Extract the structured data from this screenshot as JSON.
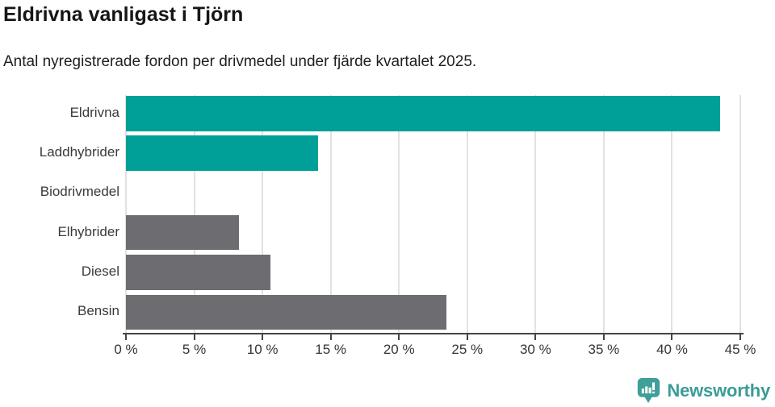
{
  "header": {
    "title": "Eldrivna vanligast i Tjörn",
    "subtitle": "Antal nyregistrerade fordon per drivmedel under fjärde kvartalet 2025."
  },
  "chart_data": {
    "type": "bar",
    "orientation": "horizontal",
    "title": "Eldrivna vanligast i Tjörn",
    "subtitle": "Antal nyregistrerade fordon per drivmedel under fjärde kvartalet 2025.",
    "categories": [
      "Eldrivna",
      "Laddhybrider",
      "Biodrivmedel",
      "Elhybrider",
      "Diesel",
      "Bensin"
    ],
    "values": [
      43.5,
      14.1,
      0,
      8.3,
      10.6,
      23.5
    ],
    "unit": "%",
    "bar_colors": [
      "#00a099",
      "#00a099",
      "#00a099",
      "#6c6c71",
      "#6c6c71",
      "#6c6c71"
    ],
    "highlight_color": "#00a099",
    "default_color": "#6c6c71",
    "xlim": [
      0,
      45
    ],
    "x_ticks": [
      0,
      5,
      10,
      15,
      20,
      25,
      30,
      35,
      40,
      45
    ],
    "x_tick_labels": [
      "0 %",
      "5 %",
      "10 %",
      "15 %",
      "20 %",
      "25 %",
      "30 %",
      "35 %",
      "40 %",
      "45 %"
    ],
    "grid": true,
    "gridline_color": "#e2e2e2",
    "axis_color": "#454548",
    "legend": "none"
  },
  "footer": {
    "brand": "Newsworthy",
    "brand_color": "#3a9c96",
    "icon": "newsworthy-speech-bubble-chart-icon"
  }
}
